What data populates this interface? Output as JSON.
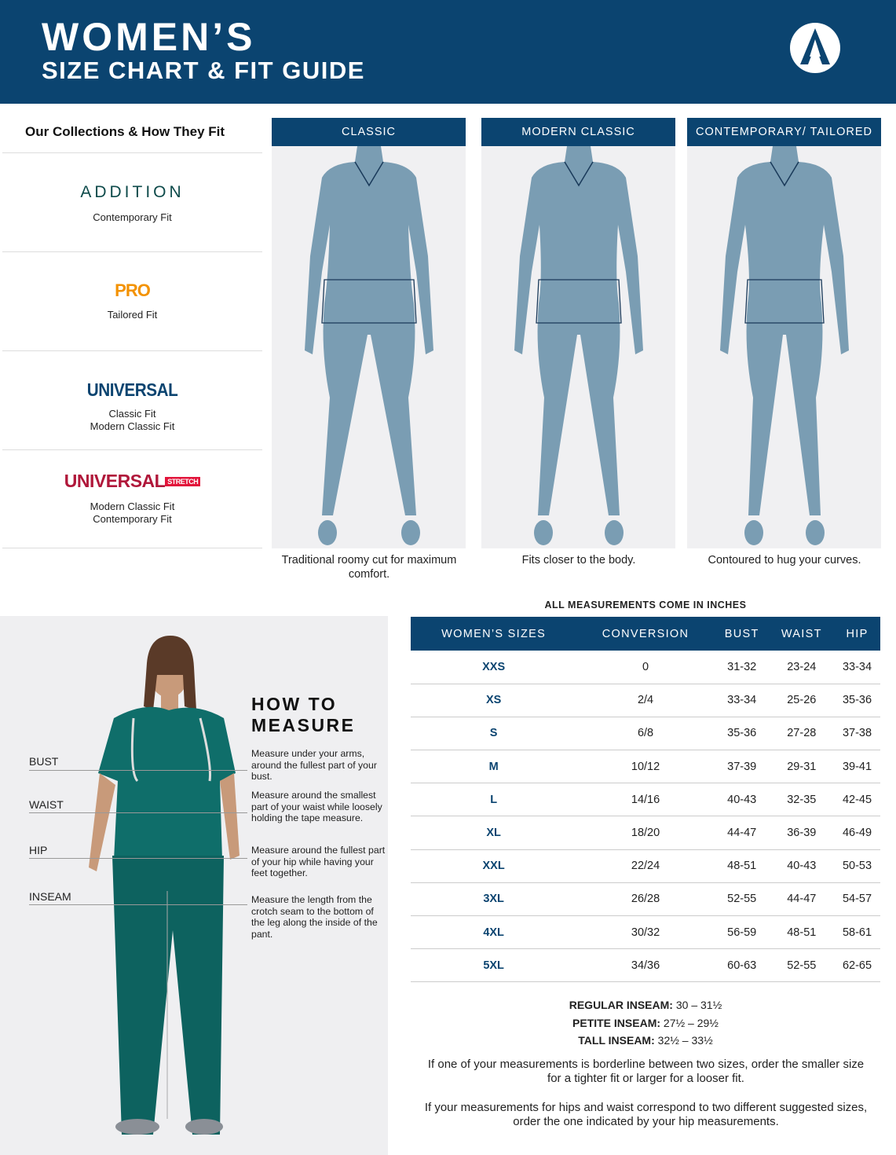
{
  "header": {
    "title_line1": "WOMEN’S",
    "title_line2": "SIZE CHART & FIT GUIDE",
    "logo": "brand-a-logo"
  },
  "collections": {
    "title": "Our Collections & How They Fit",
    "items": [
      {
        "brand": "ADDITION",
        "brand_color": "#0d4a4a",
        "fits": [
          "Contemporary Fit"
        ]
      },
      {
        "brand": "PRO",
        "brand_color": "#f39200",
        "fits": [
          "Tailored Fit"
        ]
      },
      {
        "brand": "UNIVERSAL",
        "brand_color": "#0b4470",
        "fits": [
          "Classic Fit",
          "Modern Classic Fit"
        ]
      },
      {
        "brand": "UNIVERSAL",
        "badge": "STRETCH",
        "brand_color": "#b0173a",
        "fits": [
          "Modern Classic Fit",
          "Contemporary Fit"
        ]
      }
    ]
  },
  "fits": [
    {
      "label": "CLASSIC",
      "caption": "Traditional roomy cut for maximum comfort."
    },
    {
      "label": "MODERN CLASSIC",
      "caption": "Fits closer to the body."
    },
    {
      "label": "CONTEMPORARY/ TAILORED",
      "caption": "Contoured to hug your curves."
    }
  ],
  "measure": {
    "title1": "HOW TO",
    "title2": "MEASURE",
    "items": [
      {
        "label": "BUST",
        "desc": "Measure under your arms, around the fullest part of your bust."
      },
      {
        "label": "WAIST",
        "desc": "Measure around the smallest part of your waist while loosely holding the tape measure."
      },
      {
        "label": "HIP",
        "desc": "Measure around the fullest part of your hip while having your feet together."
      },
      {
        "label": "INSEAM",
        "desc": "Measure the length from the crotch seam to the bottom of the leg along the inside of the pant."
      }
    ]
  },
  "table": {
    "note": "ALL MEASUREMENTS COME IN INCHES",
    "headers": [
      "WOMEN’S SIZES",
      "CONVERSION",
      "BUST",
      "WAIST",
      "HIP"
    ],
    "rows": [
      [
        "XXS",
        "0",
        "31-32",
        "23-24",
        "33-34"
      ],
      [
        "XS",
        "2/4",
        "33-34",
        "25-26",
        "35-36"
      ],
      [
        "S",
        "6/8",
        "35-36",
        "27-28",
        "37-38"
      ],
      [
        "M",
        "10/12",
        "37-39",
        "29-31",
        "39-41"
      ],
      [
        "L",
        "14/16",
        "40-43",
        "32-35",
        "42-45"
      ],
      [
        "XL",
        "18/20",
        "44-47",
        "36-39",
        "46-49"
      ],
      [
        "XXL",
        "22/24",
        "48-51",
        "40-43",
        "50-53"
      ],
      [
        "3XL",
        "26/28",
        "52-55",
        "44-47",
        "54-57"
      ],
      [
        "4XL",
        "30/32",
        "56-59",
        "48-51",
        "58-61"
      ],
      [
        "5XL",
        "34/36",
        "60-63",
        "52-55",
        "62-65"
      ]
    ]
  },
  "inseam": [
    {
      "label": "REGULAR INSEAM:",
      "value": "30  – 31½"
    },
    {
      "label": "PETITE INSEAM:",
      "value": "27½ – 29½"
    },
    {
      "label": "TALL INSEAM:",
      "value": "32½ – 33½"
    }
  ],
  "notes": [
    "If one of your measurements is borderline between two sizes, order the smaller size for a tighter fit or larger for a looser fit.",
    "If your measurements for hips and waist correspond to two different suggested sizes, order the one indicated by your hip measurements."
  ],
  "colors": {
    "navy": "#0b4470",
    "figure": "#7a9db3",
    "scrub": "#0f6e6a"
  }
}
